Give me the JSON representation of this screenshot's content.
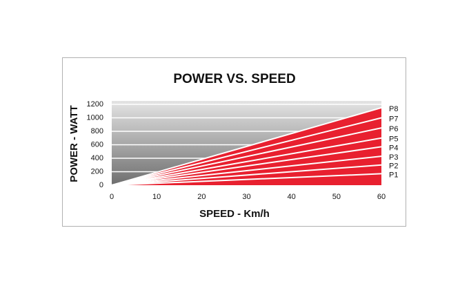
{
  "chart_data": {
    "type": "line",
    "title": "POWER VS. SPEED",
    "x_label": "SPEED - Km/h",
    "y_label": "POWER - WATT",
    "x": [
      0,
      60
    ],
    "series": [
      {
        "name": "P1",
        "values": [
          0,
          170
        ]
      },
      {
        "name": "P2",
        "values": [
          0,
          300
        ]
      },
      {
        "name": "P3",
        "values": [
          0,
          430
        ]
      },
      {
        "name": "P4",
        "values": [
          0,
          570
        ]
      },
      {
        "name": "P5",
        "values": [
          0,
          700
        ]
      },
      {
        "name": "P6",
        "values": [
          0,
          850
        ]
      },
      {
        "name": "P7",
        "values": [
          0,
          1000
        ]
      },
      {
        "name": "P8",
        "values": [
          0,
          1150
        ]
      }
    ],
    "fill_color": "#e8202f",
    "line_color": "#ffffff",
    "xlim": [
      0,
      60
    ],
    "xticks": [
      0,
      10,
      20,
      30,
      40,
      50,
      60
    ],
    "ylim": [
      0,
      1200
    ],
    "yticks": [
      0,
      200,
      400,
      600,
      800,
      1000,
      1200
    ],
    "grid": true
  }
}
